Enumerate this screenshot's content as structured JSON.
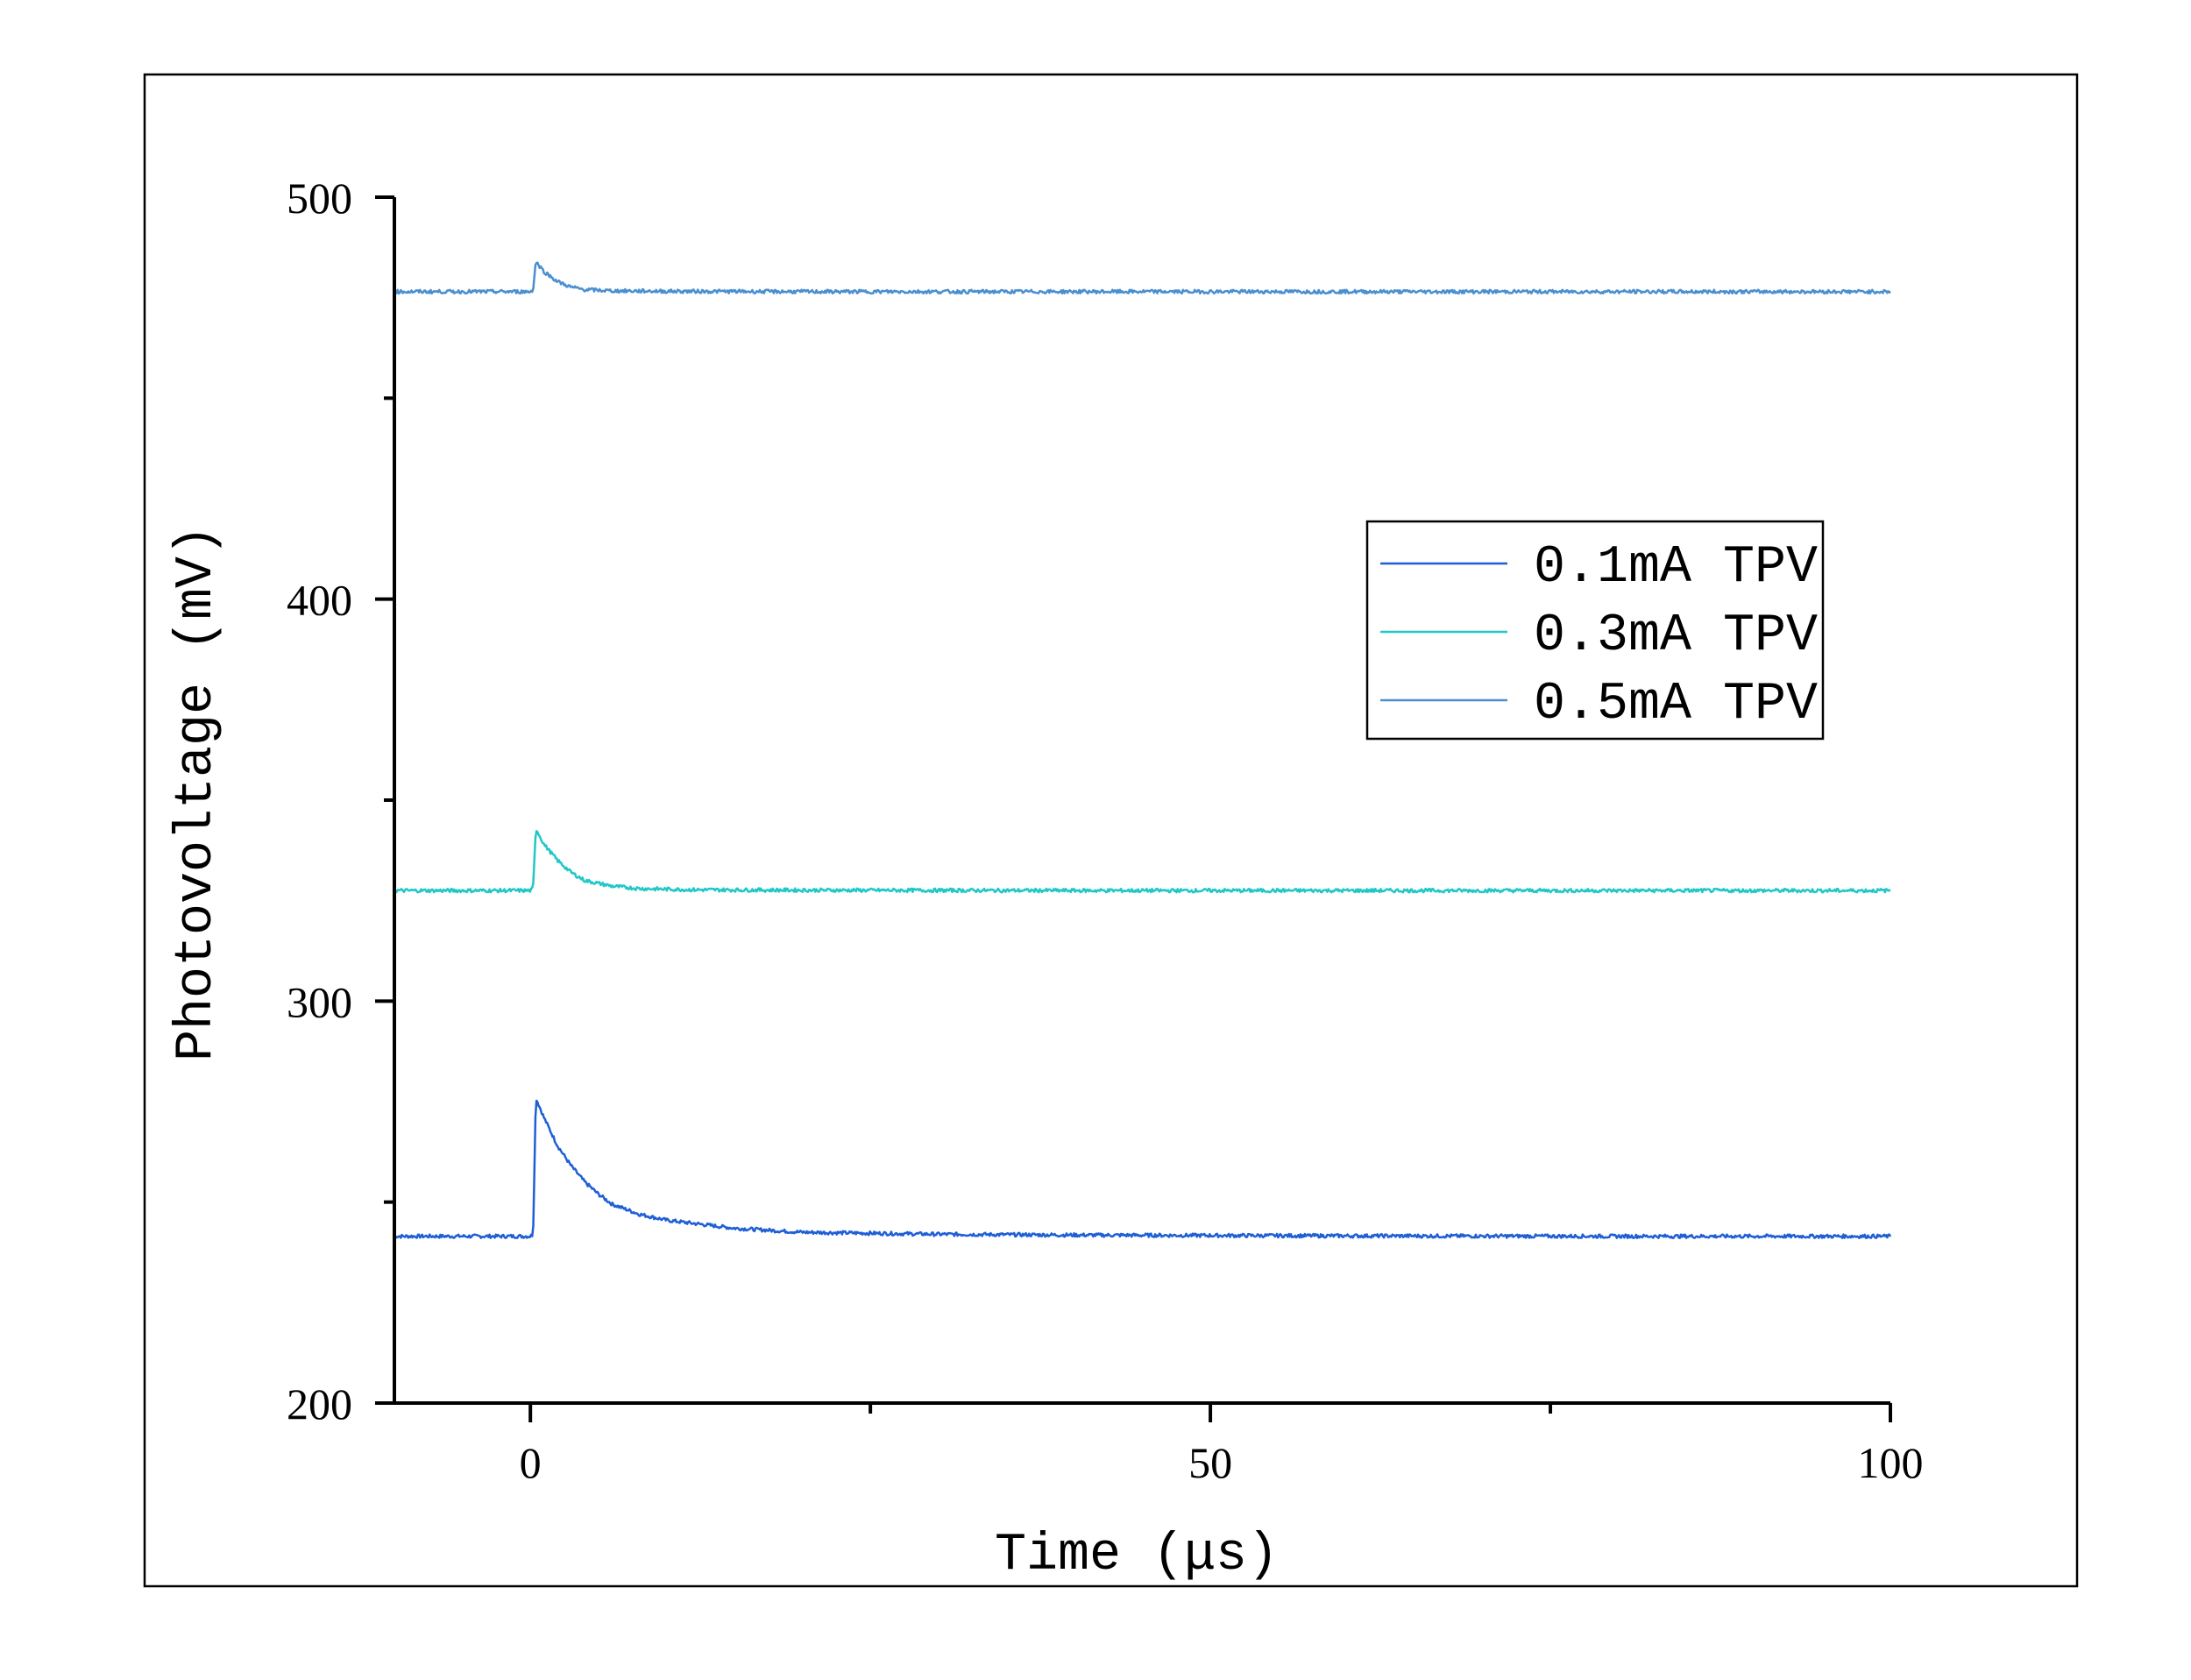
{
  "chart_data": {
    "type": "line",
    "xlabel": "Time (μs)",
    "ylabel": "Photovoltage (mV)",
    "xlim": [
      -10,
      100
    ],
    "ylim": [
      200,
      500
    ],
    "x_ticks": [
      0,
      50,
      100
    ],
    "x_tick_labels": [
      "0",
      "50",
      "100"
    ],
    "x_minor_ticks": [
      25,
      75
    ],
    "y_ticks": [
      200,
      300,
      400,
      500
    ],
    "y_tick_labels": [
      "200",
      "300",
      "400",
      "500"
    ],
    "y_minor_ticks": [
      250,
      350,
      450
    ],
    "legend": {
      "placement": "right-middle"
    },
    "series": [
      {
        "name": "0.1mA TPV",
        "color": "#1f5fd6",
        "baseline": 241.5,
        "peak": 276,
        "pulse_start": 0.2,
        "peak_time": 0.4,
        "decay_tau": 3.8,
        "points": [
          [
            -10,
            241.5
          ],
          [
            0,
            241.5
          ],
          [
            0.2,
            242
          ],
          [
            0.4,
            276
          ],
          [
            1,
            271
          ],
          [
            2,
            264
          ],
          [
            3,
            259
          ],
          [
            4,
            255
          ],
          [
            5,
            252
          ],
          [
            6,
            249.5
          ],
          [
            8,
            247
          ],
          [
            10,
            245.5
          ],
          [
            15,
            243.5
          ],
          [
            20,
            242.5
          ],
          [
            30,
            242
          ],
          [
            40,
            241.8
          ],
          [
            60,
            241.6
          ],
          [
            80,
            241.5
          ],
          [
            100,
            241.5
          ]
        ]
      },
      {
        "name": "0.3mA TPV",
        "color": "#21c7c7",
        "baseline": 327.5,
        "peak": 343,
        "pulse_start": 0.2,
        "peak_time": 0.4,
        "decay_tau": 1.8,
        "points": [
          [
            -10,
            327.5
          ],
          [
            0,
            327.5
          ],
          [
            0.2,
            328
          ],
          [
            0.4,
            343
          ],
          [
            1,
            339
          ],
          [
            2,
            335
          ],
          [
            3,
            332
          ],
          [
            4,
            330
          ],
          [
            6,
            328.6
          ],
          [
            8,
            328
          ],
          [
            12,
            327.7
          ],
          [
            20,
            327.6
          ],
          [
            40,
            327.5
          ],
          [
            60,
            327.5
          ],
          [
            80,
            327.5
          ],
          [
            100,
            327.5
          ]
        ]
      },
      {
        "name": "0.5mA TPV",
        "color": "#4a8fcf",
        "baseline": 476.5,
        "peak": 484,
        "pulse_start": 0.2,
        "peak_time": 0.4,
        "decay_tau": 1.2,
        "points": [
          [
            -10,
            476.5
          ],
          [
            0,
            476.5
          ],
          [
            0.2,
            477
          ],
          [
            0.4,
            484
          ],
          [
            1,
            481.5
          ],
          [
            2,
            479
          ],
          [
            3,
            477.6
          ],
          [
            4,
            477
          ],
          [
            6,
            476.7
          ],
          [
            10,
            476.6
          ],
          [
            20,
            476.5
          ],
          [
            40,
            476.5
          ],
          [
            60,
            476.5
          ],
          [
            80,
            476.5
          ],
          [
            100,
            476.5
          ]
        ]
      }
    ]
  }
}
